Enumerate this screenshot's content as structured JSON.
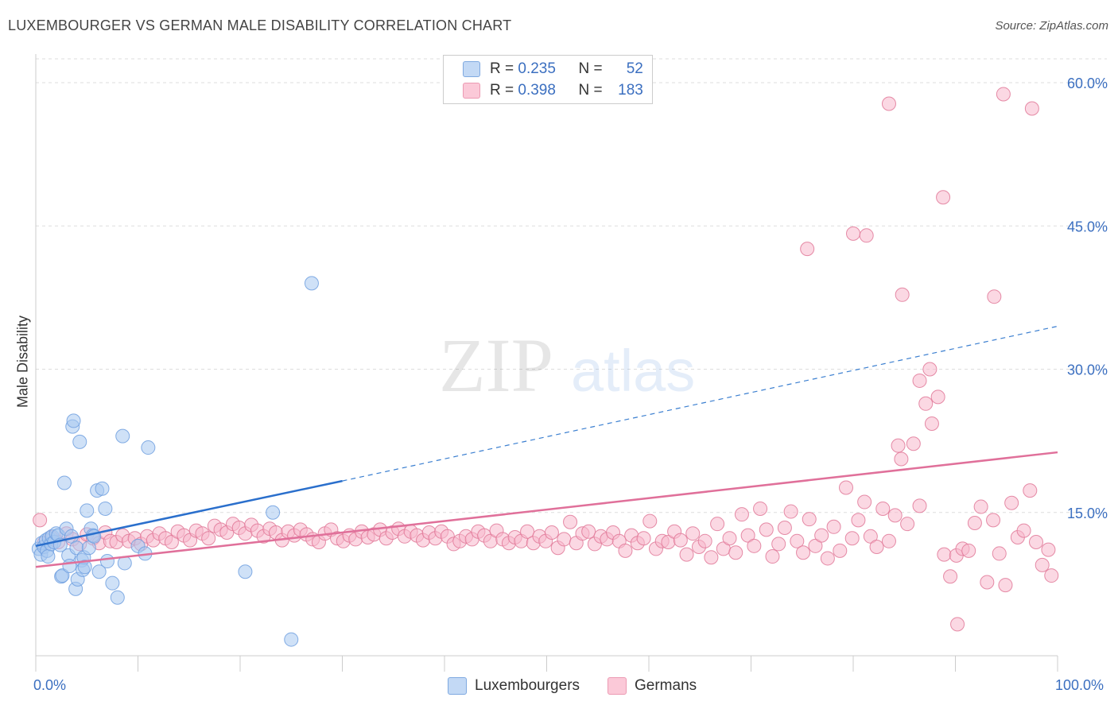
{
  "header": {
    "title": "LUXEMBOURGER VS GERMAN MALE DISABILITY CORRELATION CHART",
    "source": "Source: ZipAtlas.com"
  },
  "watermark": {
    "zip": "ZIP",
    "atlas": "atlas"
  },
  "legend": {
    "rows": [
      {
        "r_label": "R = ",
        "r_value": "0.235",
        "n_label": "N = ",
        "n_value": "52",
        "color": "#a8c8f0"
      },
      {
        "r_label": "R = ",
        "r_value": "0.398",
        "n_label": "N = ",
        "n_value": "183",
        "color": "#f8b8cc"
      }
    ]
  },
  "bottom_legend": {
    "lux_label": "Luxembourgers",
    "ger_label": "Germans"
  },
  "axes": {
    "ylabel": "Male Disability",
    "x_min_label": "0.0%",
    "x_max_label": "100.0%"
  },
  "chart_data": {
    "type": "scatter",
    "title": "LUXEMBOURGER VS GERMAN MALE DISABILITY CORRELATION CHART",
    "xlabel": "",
    "ylabel": "Male Disability",
    "xlim": [
      0,
      100
    ],
    "ylim": [
      0,
      63
    ],
    "y_ticks": [
      15,
      30,
      45,
      60
    ],
    "y_tick_labels": [
      "15.0%",
      "30.0%",
      "45.0%",
      "60.0%"
    ],
    "x_tick_labels": [
      "0.0%",
      "100.0%"
    ],
    "grid": true,
    "legend_position": "top-center",
    "series": [
      {
        "name": "Luxembourgers",
        "color": "#6f9fdf",
        "fill": "#a8c8f0",
        "r": 0.235,
        "n": 52,
        "trend": {
          "x0": 0,
          "y0": 11.5,
          "x1": 30,
          "y1": 18.3,
          "dashed_to_x": 100,
          "dashed_to_y": 34.5
        },
        "points": [
          [
            0.3,
            11.2
          ],
          [
            0.5,
            10.6
          ],
          [
            0.6,
            11.8
          ],
          [
            0.8,
            11.4
          ],
          [
            1.0,
            12.1
          ],
          [
            1.1,
            11.0
          ],
          [
            1.2,
            10.4
          ],
          [
            1.3,
            12.3
          ],
          [
            1.5,
            11.7
          ],
          [
            1.6,
            12.5
          ],
          [
            1.8,
            11.9
          ],
          [
            2.0,
            12.8
          ],
          [
            2.2,
            12.6
          ],
          [
            2.4,
            11.6
          ],
          [
            2.5,
            8.3
          ],
          [
            2.6,
            8.4
          ],
          [
            2.8,
            18.1
          ],
          [
            3.0,
            13.3
          ],
          [
            3.2,
            10.5
          ],
          [
            3.3,
            9.4
          ],
          [
            3.5,
            12.5
          ],
          [
            3.6,
            24.0
          ],
          [
            3.7,
            24.6
          ],
          [
            3.9,
            7.0
          ],
          [
            4.0,
            11.3
          ],
          [
            4.1,
            8.0
          ],
          [
            4.3,
            22.4
          ],
          [
            4.5,
            10.0
          ],
          [
            4.6,
            9.0
          ],
          [
            4.7,
            10.3
          ],
          [
            4.8,
            9.3
          ],
          [
            5.0,
            15.2
          ],
          [
            5.2,
            11.3
          ],
          [
            5.4,
            13.3
          ],
          [
            5.6,
            12.6
          ],
          [
            5.7,
            12.5
          ],
          [
            6.0,
            17.3
          ],
          [
            6.2,
            8.8
          ],
          [
            6.5,
            17.5
          ],
          [
            6.8,
            15.4
          ],
          [
            7.0,
            9.9
          ],
          [
            7.5,
            7.6
          ],
          [
            8.0,
            6.1
          ],
          [
            8.5,
            23.0
          ],
          [
            8.7,
            9.7
          ],
          [
            10.0,
            11.5
          ],
          [
            10.7,
            10.7
          ],
          [
            11.0,
            21.8
          ],
          [
            20.5,
            8.8
          ],
          [
            23.2,
            15.0
          ],
          [
            25.0,
            1.7
          ],
          [
            27.0,
            39.0
          ]
        ]
      },
      {
        "name": "Germans",
        "color": "#e07898",
        "fill": "#f8b8cc",
        "r": 0.398,
        "n": 183,
        "trend": {
          "x0": 0,
          "y0": 9.3,
          "x1": 100,
          "y1": 21.3
        },
        "points": [
          [
            0.4,
            14.2
          ],
          [
            0.8,
            11.8
          ],
          [
            1.5,
            12.4
          ],
          [
            2.2,
            11.9
          ],
          [
            3.0,
            12.8
          ],
          [
            3.6,
            12.2
          ],
          [
            4.3,
            11.7
          ],
          [
            5.0,
            12.7
          ],
          [
            5.6,
            12.3
          ],
          [
            6.2,
            11.8
          ],
          [
            6.8,
            12.9
          ],
          [
            7.3,
            12.0
          ],
          [
            7.9,
            11.9
          ],
          [
            8.5,
            12.6
          ],
          [
            9.1,
            12.0
          ],
          [
            9.7,
            12.3
          ],
          [
            10.3,
            11.7
          ],
          [
            10.9,
            12.5
          ],
          [
            11.5,
            12.1
          ],
          [
            12.1,
            12.8
          ],
          [
            12.7,
            12.3
          ],
          [
            13.3,
            11.9
          ],
          [
            13.9,
            13.0
          ],
          [
            14.5,
            12.6
          ],
          [
            15.1,
            12.1
          ],
          [
            15.7,
            13.1
          ],
          [
            16.3,
            12.8
          ],
          [
            16.9,
            12.3
          ],
          [
            17.5,
            13.6
          ],
          [
            18.1,
            13.2
          ],
          [
            18.7,
            12.9
          ],
          [
            19.3,
            13.8
          ],
          [
            19.9,
            13.4
          ],
          [
            20.5,
            12.8
          ],
          [
            21.1,
            13.7
          ],
          [
            21.7,
            13.1
          ],
          [
            22.3,
            12.5
          ],
          [
            22.9,
            13.3
          ],
          [
            23.5,
            12.9
          ],
          [
            24.1,
            12.1
          ],
          [
            24.7,
            13.0
          ],
          [
            25.3,
            12.6
          ],
          [
            25.9,
            13.2
          ],
          [
            26.5,
            12.7
          ],
          [
            27.1,
            12.2
          ],
          [
            27.7,
            11.9
          ],
          [
            28.3,
            12.8
          ],
          [
            28.9,
            13.2
          ],
          [
            29.5,
            12.3
          ],
          [
            30.1,
            12.0
          ],
          [
            30.7,
            12.6
          ],
          [
            31.3,
            12.2
          ],
          [
            31.9,
            13.0
          ],
          [
            32.5,
            12.4
          ],
          [
            33.1,
            12.7
          ],
          [
            33.7,
            13.2
          ],
          [
            34.3,
            12.3
          ],
          [
            34.9,
            12.9
          ],
          [
            35.5,
            13.3
          ],
          [
            36.1,
            12.5
          ],
          [
            36.7,
            13.0
          ],
          [
            37.3,
            12.6
          ],
          [
            37.9,
            12.1
          ],
          [
            38.5,
            12.9
          ],
          [
            39.1,
            12.3
          ],
          [
            39.7,
            13.0
          ],
          [
            40.3,
            12.5
          ],
          [
            40.9,
            11.7
          ],
          [
            41.5,
            12.0
          ],
          [
            42.1,
            12.5
          ],
          [
            42.7,
            12.2
          ],
          [
            43.3,
            13.0
          ],
          [
            43.9,
            12.6
          ],
          [
            44.5,
            12.0
          ],
          [
            45.1,
            13.1
          ],
          [
            45.7,
            12.2
          ],
          [
            46.3,
            11.8
          ],
          [
            46.9,
            12.4
          ],
          [
            47.5,
            12.0
          ],
          [
            48.1,
            13.0
          ],
          [
            48.7,
            11.8
          ],
          [
            49.3,
            12.5
          ],
          [
            49.9,
            12.0
          ],
          [
            50.5,
            12.9
          ],
          [
            51.1,
            11.3
          ],
          [
            51.7,
            12.2
          ],
          [
            52.3,
            14.0
          ],
          [
            52.9,
            11.8
          ],
          [
            53.5,
            12.8
          ],
          [
            54.1,
            13.0
          ],
          [
            54.7,
            11.7
          ],
          [
            55.3,
            12.5
          ],
          [
            55.9,
            12.2
          ],
          [
            56.5,
            12.9
          ],
          [
            57.1,
            12.0
          ],
          [
            57.7,
            11.0
          ],
          [
            58.3,
            12.6
          ],
          [
            58.9,
            11.8
          ],
          [
            59.5,
            12.3
          ],
          [
            60.1,
            14.1
          ],
          [
            60.7,
            11.2
          ],
          [
            61.3,
            12.0
          ],
          [
            61.9,
            11.9
          ],
          [
            62.5,
            13.0
          ],
          [
            63.1,
            12.1
          ],
          [
            63.7,
            10.6
          ],
          [
            64.3,
            12.8
          ],
          [
            64.9,
            11.4
          ],
          [
            65.5,
            12.0
          ],
          [
            66.1,
            10.3
          ],
          [
            66.7,
            13.8
          ],
          [
            67.3,
            11.2
          ],
          [
            67.9,
            12.3
          ],
          [
            68.5,
            10.8
          ],
          [
            69.1,
            14.8
          ],
          [
            69.7,
            12.6
          ],
          [
            70.3,
            11.5
          ],
          [
            70.9,
            15.4
          ],
          [
            71.5,
            13.2
          ],
          [
            72.1,
            10.4
          ],
          [
            72.7,
            11.7
          ],
          [
            73.3,
            13.4
          ],
          [
            73.9,
            15.1
          ],
          [
            74.5,
            12.0
          ],
          [
            75.1,
            10.8
          ],
          [
            75.7,
            14.3
          ],
          [
            76.3,
            11.5
          ],
          [
            76.9,
            12.6
          ],
          [
            77.5,
            10.2
          ],
          [
            78.1,
            13.5
          ],
          [
            78.7,
            11.0
          ],
          [
            79.3,
            17.6
          ],
          [
            79.9,
            12.3
          ],
          [
            80.5,
            14.2
          ],
          [
            81.1,
            16.1
          ],
          [
            81.7,
            12.5
          ],
          [
            82.3,
            11.4
          ],
          [
            82.9,
            15.4
          ],
          [
            83.5,
            12.0
          ],
          [
            84.1,
            14.7
          ],
          [
            84.7,
            20.6
          ],
          [
            85.3,
            13.8
          ],
          [
            85.9,
            22.2
          ],
          [
            86.5,
            15.7
          ],
          [
            87.1,
            26.4
          ],
          [
            87.7,
            24.3
          ],
          [
            88.3,
            27.1
          ],
          [
            88.9,
            10.6
          ],
          [
            89.5,
            8.3
          ],
          [
            90.1,
            10.5
          ],
          [
            90.7,
            11.2
          ],
          [
            91.3,
            11.0
          ],
          [
            91.9,
            13.9
          ],
          [
            92.5,
            15.6
          ],
          [
            93.1,
            7.7
          ],
          [
            93.7,
            14.2
          ],
          [
            94.3,
            10.7
          ],
          [
            94.9,
            7.4
          ],
          [
            95.5,
            16.0
          ],
          [
            96.1,
            12.4
          ],
          [
            96.7,
            13.1
          ],
          [
            97.3,
            17.3
          ],
          [
            97.9,
            11.9
          ],
          [
            98.5,
            9.5
          ],
          [
            99.1,
            11.1
          ],
          [
            99.4,
            8.4
          ],
          [
            75.5,
            42.6
          ],
          [
            80.0,
            44.2
          ],
          [
            81.3,
            44.0
          ],
          [
            84.8,
            37.8
          ],
          [
            86.5,
            28.8
          ],
          [
            87.5,
            30.0
          ],
          [
            88.8,
            48.0
          ],
          [
            83.5,
            57.8
          ],
          [
            94.7,
            58.8
          ],
          [
            97.5,
            57.3
          ],
          [
            93.8,
            37.6
          ],
          [
            84.4,
            22.0
          ],
          [
            90.2,
            3.3
          ]
        ]
      }
    ]
  }
}
